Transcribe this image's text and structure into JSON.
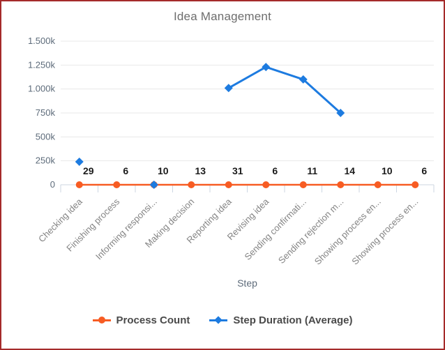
{
  "window": {
    "border_color": "#a52a2a",
    "background": "#ffffff"
  },
  "chart_data": {
    "type": "line",
    "title": "Idea Management",
    "xlabel": "Step",
    "ylabel": "",
    "categories": [
      "Checking idea",
      "Finishing process",
      "Informing responsi...",
      "Making decision",
      "Reporting idea",
      "Revising idea",
      "Sending confirmati...",
      "Sending rejection m...",
      "Showing process en...",
      "Showing process en..."
    ],
    "y_tick_labels": [
      "0",
      "250k",
      "500k",
      "750k",
      "1.000k",
      "1.250k",
      "1.500k"
    ],
    "y_tick_values": [
      0,
      250000,
      500000,
      750000,
      1000000,
      1250000,
      1500000
    ],
    "ylim": [
      0,
      1500000
    ],
    "grid": "horizontal-only",
    "legend_position": "bottom",
    "series": [
      {
        "name": "Process Count",
        "marker": "circle",
        "color": "#f75c23",
        "values": [
          29,
          6,
          10,
          13,
          31,
          6,
          11,
          14,
          10,
          6
        ],
        "data_labels": true
      },
      {
        "name": "Step Duration (Average)",
        "marker": "diamond",
        "color": "#1d7be0",
        "values": [
          240000,
          null,
          0,
          null,
          1010000,
          1230000,
          1100000,
          750000,
          null,
          null
        ],
        "data_labels": false
      }
    ]
  }
}
